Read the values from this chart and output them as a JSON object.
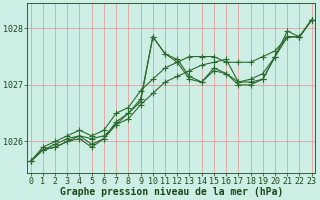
{
  "xlabel_label": "Graphe pression niveau de la mer (hPa)",
  "x": [
    0,
    1,
    2,
    3,
    4,
    5,
    6,
    7,
    8,
    9,
    10,
    11,
    12,
    13,
    14,
    15,
    16,
    17,
    18,
    19,
    20,
    21,
    22,
    23
  ],
  "lines": [
    [
      1025.65,
      1025.85,
      1025.9,
      1026.0,
      1026.05,
      1025.9,
      1026.05,
      1026.35,
      1026.5,
      1026.75,
      1027.85,
      1027.55,
      1027.45,
      1027.15,
      1027.05,
      1027.25,
      1027.2,
      1027.05,
      1027.05,
      1027.1,
      1027.5,
      1027.95,
      1027.85,
      1028.15
    ],
    [
      1025.65,
      1025.85,
      1025.95,
      1026.05,
      1026.1,
      1026.05,
      1026.1,
      1026.3,
      1026.4,
      1026.65,
      1026.85,
      1027.05,
      1027.15,
      1027.25,
      1027.35,
      1027.4,
      1027.45,
      1027.05,
      1027.1,
      1027.2,
      1027.5,
      1027.85,
      1027.85,
      1028.15
    ],
    [
      1025.65,
      1025.85,
      1025.9,
      1026.0,
      1026.1,
      1025.95,
      1026.05,
      1026.3,
      1026.5,
      1026.7,
      1027.85,
      1027.55,
      1027.4,
      1027.1,
      1027.05,
      1027.3,
      1027.2,
      1027.0,
      1027.0,
      1027.1,
      1027.5,
      1027.85,
      1027.85,
      1028.15
    ],
    [
      1025.65,
      1025.9,
      1026.0,
      1026.1,
      1026.2,
      1026.1,
      1026.2,
      1026.5,
      1026.6,
      1026.9,
      1027.1,
      1027.3,
      1027.4,
      1027.5,
      1027.5,
      1027.5,
      1027.4,
      1027.4,
      1027.4,
      1027.5,
      1027.6,
      1027.85,
      1027.85,
      1028.15
    ]
  ],
  "line_color": "#2d6a2d",
  "marker": "+",
  "marker_size": 4,
  "marker_linewidth": 0.8,
  "line_width": 0.8,
  "background_color": "#cceee4",
  "grid_color": "#e89090",
  "yticks": [
    1026,
    1027,
    1028
  ],
  "ylim": [
    1025.45,
    1028.45
  ],
  "xlim": [
    -0.3,
    23.3
  ],
  "tick_fontsize": 6,
  "xlabel_fontsize": 7,
  "title_color": "#1a4a1a",
  "tick_color": "#1a4a1a"
}
